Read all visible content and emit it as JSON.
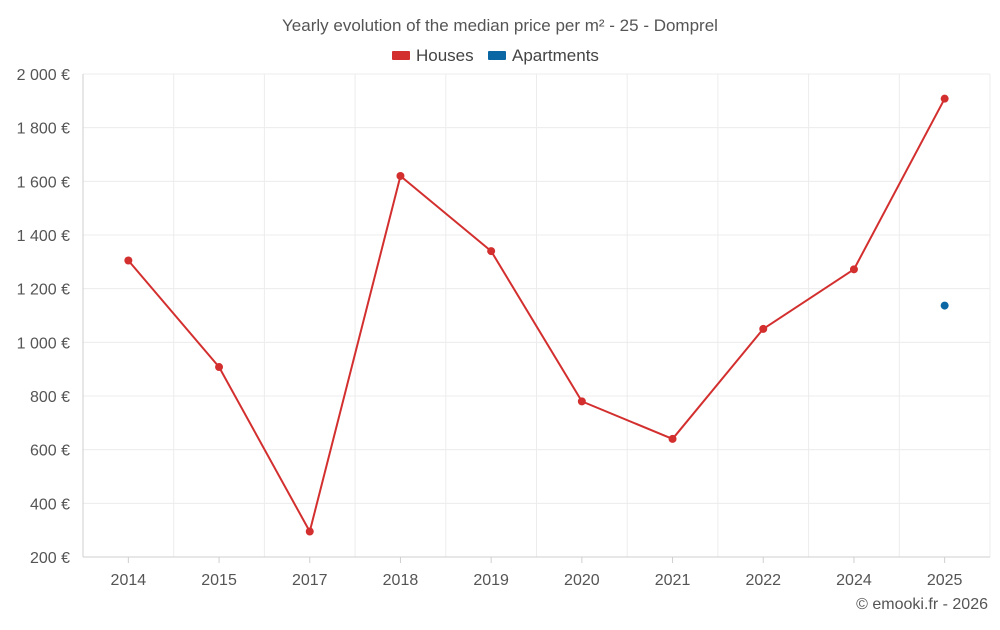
{
  "chart_data": {
    "type": "line",
    "title": "Yearly evolution of the median price per m² - 25 - Domprel",
    "categories": [
      "2014",
      "2015",
      "2017",
      "2018",
      "2019",
      "2020",
      "2021",
      "2022",
      "2024",
      "2025"
    ],
    "ylim": [
      200,
      2000
    ],
    "yticks": [
      200,
      400,
      600,
      800,
      1000,
      1200,
      1400,
      1600,
      1800,
      2000
    ],
    "ytick_labels": [
      "200 €",
      "400 €",
      "600 €",
      "800 €",
      "1 000 €",
      "1 200 €",
      "1 400 €",
      "1 600 €",
      "1 800 €",
      "2 000 €"
    ],
    "grid": true,
    "legend_position": "top-center",
    "series": [
      {
        "name": "Houses",
        "color": "#d32f2f",
        "values": [
          1305,
          908,
          295,
          1620,
          1340,
          780,
          640,
          1050,
          1272,
          1908
        ]
      },
      {
        "name": "Apartments",
        "color": "#0b67a3",
        "values": [
          null,
          null,
          null,
          null,
          null,
          null,
          null,
          null,
          null,
          1137
        ]
      }
    ],
    "credit": "© emooki.fr - 2026"
  }
}
